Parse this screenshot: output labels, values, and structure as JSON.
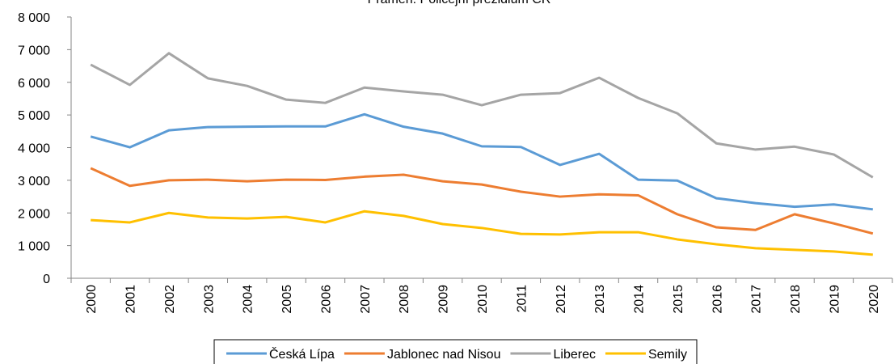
{
  "chart_data": {
    "type": "line",
    "title": "Pramen: Policejní prezidium ČR",
    "categories": [
      "2000",
      "2001",
      "2002",
      "2003",
      "2004",
      "2005",
      "2006",
      "2007",
      "2008",
      "2009",
      "2010",
      "2011",
      "2012",
      "2013",
      "2014",
      "2015",
      "2016",
      "2017",
      "2018",
      "2019",
      "2020"
    ],
    "series": [
      {
        "name": "Česká Lípa",
        "color": "#5b9bd5",
        "values": [
          4340,
          4010,
          4530,
          4630,
          4640,
          4650,
          4650,
          5020,
          4640,
          4430,
          4040,
          4020,
          3470,
          3810,
          3020,
          2990,
          2450,
          2300,
          2190,
          2260,
          2110
        ]
      },
      {
        "name": "Jablonec nad Nisou",
        "color": "#ed7d31",
        "values": [
          3370,
          2830,
          3000,
          3020,
          2970,
          3020,
          3010,
          3110,
          3170,
          2970,
          2870,
          2650,
          2500,
          2570,
          2540,
          1960,
          1560,
          1480,
          1960,
          1680,
          1370
        ]
      },
      {
        "name": "Liberec",
        "color": "#a5a5a5",
        "values": [
          6540,
          5920,
          6890,
          6120,
          5890,
          5470,
          5370,
          5840,
          5720,
          5620,
          5300,
          5620,
          5670,
          6140,
          5520,
          5050,
          4130,
          3940,
          4030,
          3790,
          3090
        ]
      },
      {
        "name": "Semily",
        "color": "#ffc000",
        "values": [
          1780,
          1710,
          2000,
          1860,
          1830,
          1880,
          1710,
          2050,
          1910,
          1660,
          1540,
          1360,
          1340,
          1410,
          1410,
          1190,
          1040,
          920,
          870,
          820,
          720
        ]
      }
    ],
    "ylim": [
      0,
      8000
    ],
    "yticks": [
      0,
      {
        "value": 1000,
        "label": "1 000"
      },
      {
        "value": 2000,
        "label": "2 000"
      },
      {
        "value": 3000,
        "label": "3 000"
      },
      {
        "value": 4000,
        "label": "4 000"
      },
      {
        "value": 5000,
        "label": "5 000"
      },
      {
        "value": 6000,
        "label": "6 000"
      },
      {
        "value": 7000,
        "label": "7 000"
      },
      {
        "value": 8000,
        "label": "8 000"
      }
    ],
    "legend": "bottom"
  }
}
